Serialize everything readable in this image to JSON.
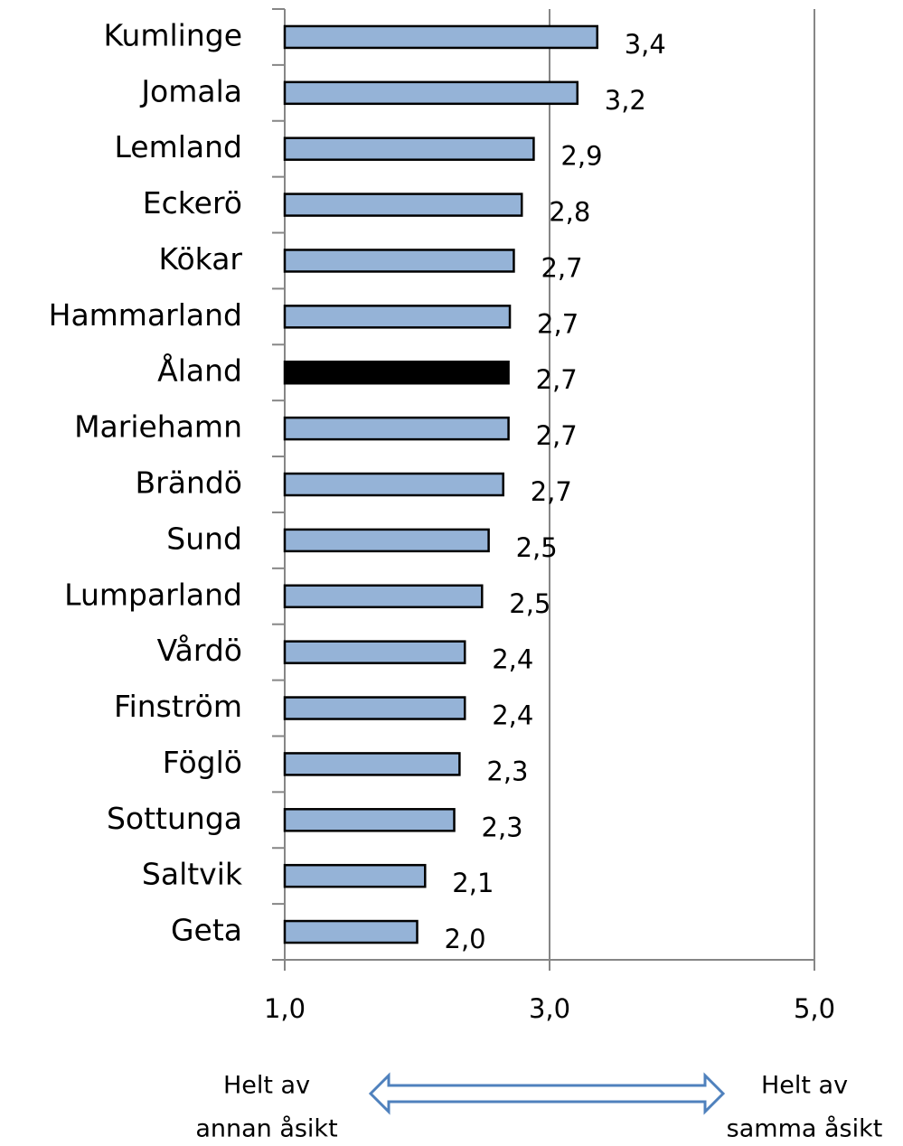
{
  "chart_data": {
    "type": "barh",
    "categories": [
      "Kumlinge",
      "Jomala",
      "Lemland",
      "Eckerö",
      "Kökar",
      "Hammarland",
      "Åland",
      "Mariehamn",
      "Brändö",
      "Sund",
      "Lumparland",
      "Vårdö",
      "Finström",
      "Föglö",
      "Sottunga",
      "Saltvik",
      "Geta"
    ],
    "values": [
      3.36,
      3.21,
      2.88,
      2.79,
      2.73,
      2.7,
      2.69,
      2.69,
      2.65,
      2.54,
      2.49,
      2.36,
      2.36,
      2.32,
      2.28,
      2.06,
      2.0
    ],
    "value_labels": [
      "3,4",
      "3,2",
      "2,9",
      "2,8",
      "2,7",
      "2,7",
      "2,7",
      "2,7",
      "2,7",
      "2,5",
      "2,5",
      "2,4",
      "2,4",
      "2,3",
      "2,3",
      "2,1",
      "2,0"
    ],
    "colors": [
      "#95b3d7",
      "#95b3d7",
      "#95b3d7",
      "#95b3d7",
      "#95b3d7",
      "#95b3d7",
      "#000000",
      "#95b3d7",
      "#95b3d7",
      "#95b3d7",
      "#95b3d7",
      "#95b3d7",
      "#95b3d7",
      "#95b3d7",
      "#95b3d7",
      "#95b3d7",
      "#95b3d7"
    ],
    "xlim": [
      1,
      5
    ],
    "xticks": [
      {
        "value": 1,
        "label": "1,0"
      },
      {
        "value": 3,
        "label": "3,0"
      },
      {
        "value": 5,
        "label": "5,0"
      }
    ],
    "grid": true,
    "annotations": {
      "left": [
        "Helt av",
        "annan åsikt"
      ],
      "right": [
        "Helt av",
        "samma åsikt"
      ]
    }
  }
}
